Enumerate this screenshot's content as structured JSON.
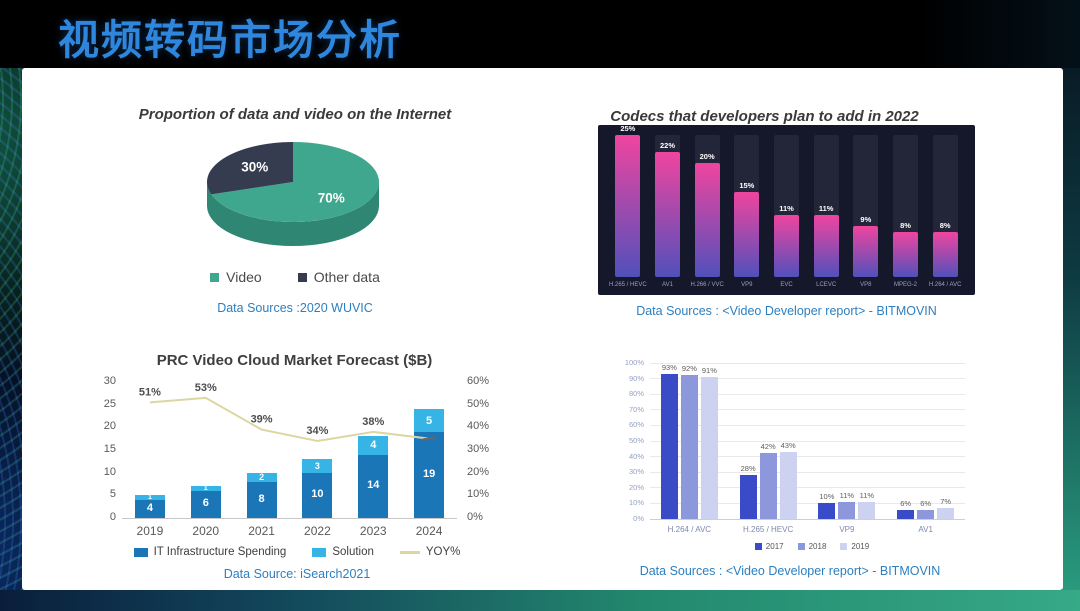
{
  "header": {
    "title": "视频转码市场分析"
  },
  "colors": {
    "title_blue": "#2e86dd",
    "source_text_blue": "#2d7fc0",
    "panel_white": "#ffffff"
  },
  "chart_data": [
    {
      "id": "internet-data-video-pie",
      "type": "pie",
      "title": "Proportion of data and video on the Internet",
      "slices": [
        {
          "label": "Video",
          "value": 70,
          "display": "70%",
          "color": "#3fa78d",
          "side_color": "#2f8672"
        },
        {
          "label": "Other data",
          "value": 30,
          "display": "30%",
          "color": "#363c50",
          "side_color": "#2a2f40"
        }
      ],
      "start_angle_deg": -90,
      "legend_position": "bottom",
      "source": "Data Sources :2020 WUVIC"
    },
    {
      "id": "codecs-planned-2022",
      "type": "bar",
      "title": "Codecs that developers plan to add in 2022",
      "categories": [
        "H.265 / HEVC",
        "AV1",
        "H.266 / VVC",
        "VP9",
        "EVC",
        "LCEVC",
        "VP8",
        "MPEG-2",
        "H.264 / AVC"
      ],
      "values": [
        25,
        22,
        20,
        15,
        11,
        11,
        9,
        8,
        8
      ],
      "value_labels": [
        "25%",
        "22%",
        "20%",
        "15%",
        "11%",
        "11%",
        "9%",
        "8%",
        "8%"
      ],
      "ylim": [
        0,
        25
      ],
      "panel_bg": "#15172b",
      "track_color": "#232539",
      "bar_gradient_top": "#ef459f",
      "bar_gradient_bottom": "#5150bb",
      "source": "Data Sources : <Video Developer report> - BITMOVIN"
    },
    {
      "id": "prc-video-cloud-forecast",
      "type": "bar",
      "title": "PRC Video Cloud Market Forecast ($B)",
      "categories": [
        "2019",
        "2020",
        "2021",
        "2022",
        "2023",
        "2024"
      ],
      "series": [
        {
          "name": "IT Infrastructure Spending",
          "kind": "stacked-bar",
          "color": "#1b76b8",
          "values": [
            4,
            6,
            8,
            10,
            14,
            19
          ]
        },
        {
          "name": "Solution",
          "kind": "stacked-bar",
          "color": "#35b4e5",
          "values": [
            1,
            1,
            2,
            3,
            4,
            5
          ]
        },
        {
          "name": "YOY%",
          "kind": "line",
          "color": "#dcd7a2",
          "values": [
            51,
            53,
            39,
            34,
            38,
            35
          ],
          "point_labels": [
            "51%",
            "53%",
            "39%",
            "34%",
            "38%",
            ""
          ]
        }
      ],
      "left_axis": {
        "min": 0,
        "max": 30,
        "step": 5
      },
      "right_axis": {
        "min": 0,
        "max": 60,
        "step": 10,
        "suffix": "%"
      },
      "grid": false,
      "legend_position": "bottom",
      "source": "Data Source: iSearch2021"
    },
    {
      "id": "codec-usage-by-year",
      "type": "bar",
      "title": "",
      "categories": [
        "H.264 / AVC",
        "H.265 / HEVC",
        "VP9",
        "AV1"
      ],
      "series": [
        {
          "name": "2017",
          "color": "#3a4bc8",
          "values": [
            93,
            28,
            10,
            6
          ]
        },
        {
          "name": "2018",
          "color": "#8d97dc",
          "values": [
            92,
            42,
            11,
            6
          ]
        },
        {
          "name": "2019",
          "color": "#ccd2f0",
          "values": [
            91,
            43,
            11,
            7
          ]
        }
      ],
      "y_axis": {
        "min": 0,
        "max": 100,
        "step": 10,
        "suffix": "%"
      },
      "grid": true,
      "legend_position": "bottom",
      "source": "Data Sources : <Video Developer report> - BITMOVIN"
    }
  ]
}
